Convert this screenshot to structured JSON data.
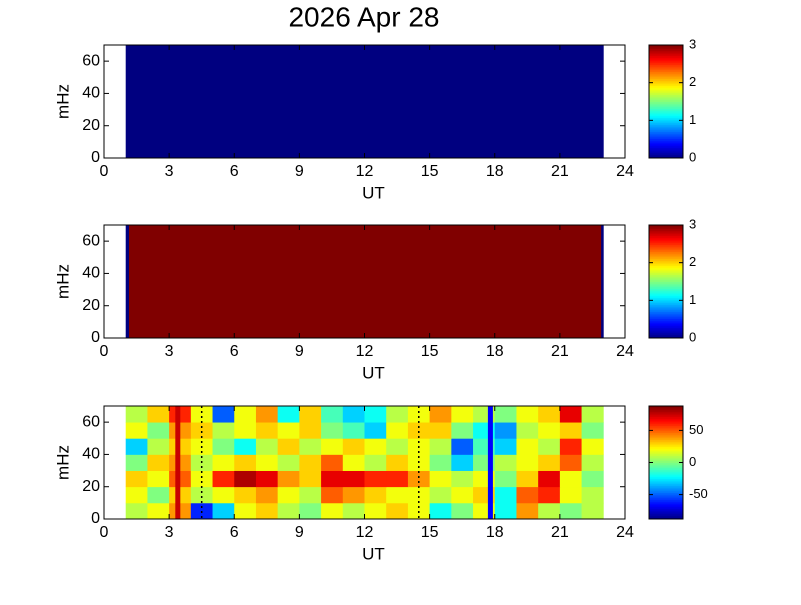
{
  "title": "2026 Apr 28",
  "chart_data": [
    {
      "type": "heatmap",
      "colormap": "jet",
      "xlabel": "UT",
      "ylabel": "mHz",
      "xlim": [
        0,
        24
      ],
      "ylim": [
        0,
        70
      ],
      "xticks": [
        0,
        3,
        6,
        9,
        12,
        15,
        18,
        21,
        24
      ],
      "yticks": [
        0,
        20,
        40,
        60
      ],
      "x_edges": [
        1,
        23
      ],
      "y_edges": [
        0,
        70
      ],
      "values": [
        [
          0
        ]
      ],
      "clim": [
        0,
        3
      ],
      "colorbar_ticks": [
        0,
        1,
        2,
        3
      ],
      "lines": []
    },
    {
      "type": "heatmap",
      "colormap": "jet",
      "xlabel": "UT",
      "ylabel": "mHz",
      "xlim": [
        0,
        24
      ],
      "ylim": [
        0,
        70
      ],
      "xticks": [
        0,
        3,
        6,
        9,
        12,
        15,
        18,
        21,
        24
      ],
      "yticks": [
        0,
        20,
        40,
        60
      ],
      "x_edges": [
        1,
        1.15,
        22.9,
        23
      ],
      "y_edges": [
        0,
        70
      ],
      "values": [
        [
          0,
          3,
          0
        ]
      ],
      "clim": [
        0,
        3
      ],
      "colorbar_ticks": [
        0,
        1,
        2,
        3
      ],
      "lines": []
    },
    {
      "type": "heatmap",
      "colormap": "jet",
      "xlabel": "UT",
      "ylabel": "mHz",
      "xlim": [
        0,
        24
      ],
      "ylim": [
        0,
        70
      ],
      "xticks": [
        0,
        3,
        6,
        9,
        12,
        15,
        18,
        21,
        24
      ],
      "yticks": [
        0,
        20,
        40,
        60
      ],
      "x_edges": [
        1,
        2,
        3,
        4,
        5,
        6,
        7,
        8,
        9,
        10,
        11,
        12,
        13,
        14,
        15,
        16,
        17,
        18,
        19,
        20,
        21,
        22,
        23
      ],
      "y_edges": [
        0,
        10,
        20,
        30,
        40,
        50,
        60,
        70
      ],
      "values": [
        [
          10,
          20,
          40,
          -60,
          -30,
          20,
          30,
          10,
          0,
          20,
          10,
          20,
          30,
          20,
          -20,
          0,
          20,
          -20,
          40,
          10,
          0,
          10
        ],
        [
          20,
          0,
          30,
          10,
          20,
          30,
          40,
          20,
          10,
          50,
          40,
          30,
          20,
          20,
          10,
          20,
          30,
          -20,
          50,
          60,
          20,
          10
        ],
        [
          30,
          20,
          50,
          20,
          60,
          80,
          70,
          40,
          30,
          70,
          70,
          60,
          60,
          40,
          20,
          10,
          20,
          0,
          30,
          70,
          20,
          0
        ],
        [
          0,
          30,
          40,
          10,
          20,
          30,
          20,
          10,
          30,
          50,
          20,
          10,
          30,
          20,
          0,
          -30,
          0,
          10,
          20,
          30,
          50,
          10
        ],
        [
          -30,
          10,
          30,
          20,
          0,
          -20,
          10,
          30,
          10,
          20,
          30,
          20,
          10,
          20,
          10,
          -50,
          -10,
          -30,
          20,
          10,
          60,
          20
        ],
        [
          20,
          0,
          40,
          30,
          10,
          20,
          30,
          20,
          30,
          0,
          -10,
          -30,
          20,
          30,
          30,
          0,
          -20,
          -40,
          10,
          20,
          30,
          0
        ],
        [
          10,
          30,
          60,
          20,
          -50,
          20,
          40,
          -20,
          30,
          -10,
          -30,
          -20,
          10,
          20,
          40,
          20,
          10,
          0,
          20,
          30,
          70,
          10
        ]
      ],
      "clim": [
        -88,
        88
      ],
      "colorbar_ticks": [
        -50,
        0,
        50
      ],
      "lines": [
        {
          "x": 3.4,
          "color": "#c80000",
          "style": "solid"
        },
        {
          "x": 4.5,
          "color": "#000000",
          "style": "dotted"
        },
        {
          "x": 14.5,
          "color": "#000000",
          "style": "dotted"
        },
        {
          "x": 17.8,
          "color": "#0000ff",
          "style": "solid"
        }
      ]
    }
  ]
}
